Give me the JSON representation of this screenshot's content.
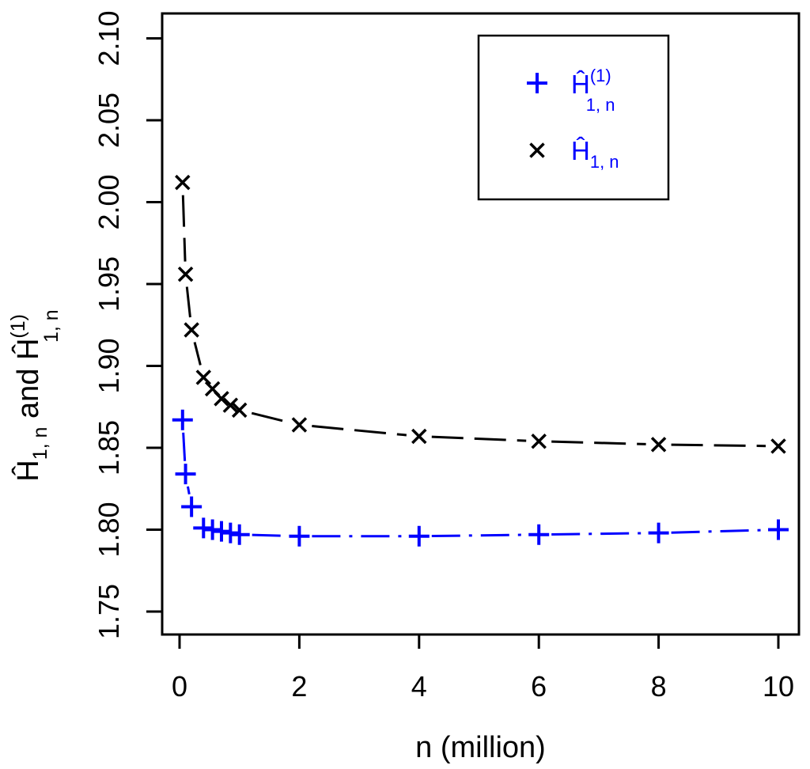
{
  "figure": {
    "background": "#ffffff",
    "border_color": "#000000"
  },
  "chart_data": {
    "type": "line",
    "title": "",
    "xlabel": "n (million)",
    "ylabel_text": "H_1,n and H^(1)_1,n (with hats)",
    "ylabel_parts": [
      {
        "t": "Ĥ",
        "s": "b"
      },
      {
        "t": "1, n",
        "s": "sub"
      },
      {
        "t": " and ",
        "s": "b"
      },
      {
        "t": "Ĥ",
        "s": "b"
      },
      {
        "t": "(1)",
        "s": "sup"
      },
      {
        "t": "1, n",
        "s": "substack"
      }
    ],
    "x": [
      0.05,
      0.1,
      0.2,
      0.4,
      0.55,
      0.7,
      0.85,
      1,
      2,
      4,
      6,
      8,
      10
    ],
    "series": [
      {
        "name": "H1n_hat_sup1",
        "label": {
          "base": "Ĥ",
          "sup": "(1)",
          "sub": "1, n"
        },
        "color": "#0000ff",
        "marker": "plus",
        "linestyle": "dashdot",
        "values": [
          1.867,
          1.834,
          1.814,
          1.801,
          1.8,
          1.799,
          1.798,
          1.797,
          1.796,
          1.796,
          1.797,
          1.798,
          1.8
        ]
      },
      {
        "name": "H1n_hat",
        "label": {
          "base": "Ĥ",
          "sup": "",
          "sub": "1, n"
        },
        "color": "#000000",
        "marker": "x",
        "linestyle": "dashed",
        "values": [
          2.012,
          1.956,
          1.922,
          1.893,
          1.886,
          1.88,
          1.876,
          1.873,
          1.864,
          1.857,
          1.854,
          1.852,
          1.851
        ]
      }
    ],
    "xticks": [
      "0",
      "2",
      "4",
      "6",
      "8",
      "10"
    ],
    "xtick_values": [
      0,
      2,
      4,
      6,
      8,
      10
    ],
    "yticks": [
      "1.75",
      "1.80",
      "1.85",
      "1.90",
      "1.95",
      "2.00",
      "2.05",
      "2.10"
    ],
    "ytick_values": [
      1.75,
      1.8,
      1.85,
      1.9,
      1.95,
      2.0,
      2.05,
      2.1
    ],
    "xlim": [
      -0.29,
      10.34
    ],
    "ylim": [
      1.735,
      2.115
    ],
    "grid": false,
    "legend": {
      "position": "top-right",
      "border": true,
      "text_color": "#0000ff",
      "entries": [
        {
          "marker": "plus",
          "marker_color": "#0000ff",
          "label": {
            "base": "Ĥ",
            "sup": "(1)",
            "sub": "1, n"
          }
        },
        {
          "marker": "x",
          "marker_color": "#000000",
          "label": {
            "base": "Ĥ",
            "sup": "",
            "sub": "1, n"
          }
        }
      ]
    }
  }
}
